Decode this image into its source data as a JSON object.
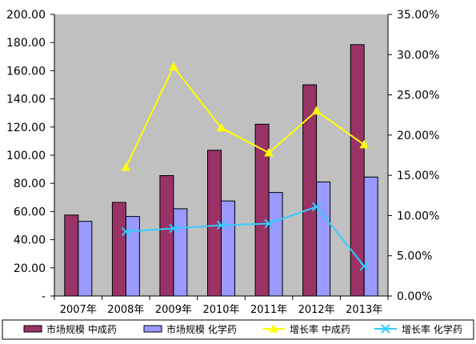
{
  "chart_data": {
    "type": "bar",
    "categories": [
      "2007年",
      "2008年",
      "2009年",
      "2010年",
      "2011年",
      "2012年",
      "2013年"
    ],
    "series": [
      {
        "name": "市场规模  中成药",
        "kind": "bar",
        "axis": "left",
        "color": "#993366",
        "values": [
          57.5,
          66.5,
          85.5,
          103.5,
          122,
          150,
          178.5
        ]
      },
      {
        "name": "市场规模  化学药",
        "kind": "bar",
        "axis": "left",
        "color": "#9999ff",
        "values": [
          53,
          56.5,
          62,
          67.5,
          73.5,
          81,
          84.5
        ]
      },
      {
        "name": "增长率  中成药",
        "kind": "line",
        "axis": "right",
        "color": "#ffff00",
        "marker": "triangle",
        "values": [
          null,
          0.16,
          0.285,
          0.209,
          0.178,
          0.23,
          0.188
        ]
      },
      {
        "name": "增长率  化学药",
        "kind": "line",
        "axis": "right",
        "color": "#33ccff",
        "marker": "x",
        "values": [
          null,
          0.08,
          0.084,
          0.088,
          0.09,
          0.111,
          0.037
        ]
      }
    ],
    "left_axis": {
      "ylim": [
        0,
        200
      ],
      "ticks": [
        0,
        20,
        40,
        60,
        80,
        100,
        120,
        140,
        160,
        180,
        200
      ],
      "tick_labels": [
        "-",
        "20.00",
        "40.00",
        "60.00",
        "80.00",
        "100.00",
        "120.00",
        "140.00",
        "160.00",
        "180.00",
        "200.00"
      ]
    },
    "right_axis": {
      "ylim": [
        0,
        0.35
      ],
      "ticks": [
        0,
        0.05,
        0.1,
        0.15,
        0.2,
        0.25,
        0.3,
        0.35
      ],
      "tick_labels": [
        "0.00%",
        "5.00%",
        "10.00%",
        "15.00%",
        "20.00%",
        "25.00%",
        "30.00%",
        "35.00%"
      ]
    },
    "plot_background": "#c0c0c0",
    "grid": false,
    "legend_position": "bottom"
  }
}
